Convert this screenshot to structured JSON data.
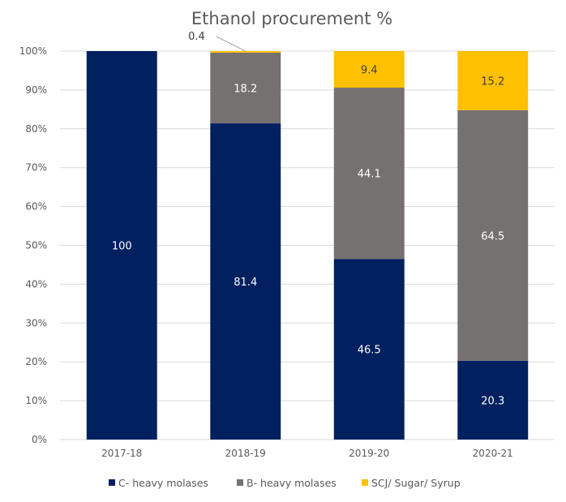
{
  "chart_data": {
    "type": "bar",
    "stacked": true,
    "title": "Ethanol procurement %",
    "xlabel": "",
    "ylabel": "",
    "ylim": [
      0,
      100
    ],
    "y_ticks": [
      "0%",
      "10%",
      "20%",
      "30%",
      "40%",
      "50%",
      "60%",
      "70%",
      "80%",
      "90%",
      "100%"
    ],
    "grid": true,
    "categories": [
      "2017-18",
      "2018-19",
      "2019-20",
      "2020-21"
    ],
    "series": [
      {
        "name": "C- heavy molases",
        "color": "#002060",
        "label_color": "#ffffff",
        "values": [
          100,
          81.4,
          46.5,
          20.3
        ]
      },
      {
        "name": "B- heavy molases",
        "color": "#767171",
        "label_color": "#ffffff",
        "values": [
          0,
          18.2,
          44.1,
          64.5
        ]
      },
      {
        "name": "SCJ/ Sugar/ Syrup",
        "color": "#FFC000",
        "label_color": "#404040",
        "values": [
          0,
          0.4,
          9.4,
          15.2
        ]
      }
    ],
    "legend_position": "bottom"
  }
}
